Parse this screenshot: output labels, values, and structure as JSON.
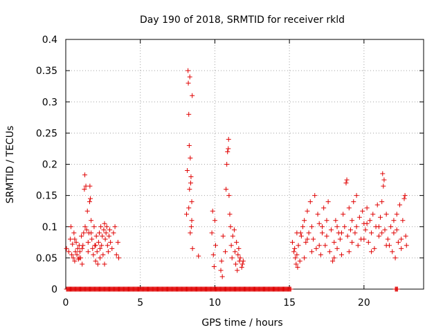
{
  "chart_data": {
    "type": "scatter",
    "title": "Day 190 of 2018, SRMTID for receiver rkld",
    "xlabel": "GPS time / hours",
    "ylabel": "SRMTID / TECUs",
    "xlim": [
      0,
      24
    ],
    "ylim": [
      0,
      0.4
    ],
    "x_ticks": [
      0,
      5,
      10,
      15,
      20
    ],
    "y_ticks": [
      0,
      0.05,
      0.1,
      0.15,
      0.2,
      0.25,
      0.3,
      0.35,
      0.4
    ],
    "x_tick_labels": [
      "0",
      "5",
      "10",
      "15",
      "20"
    ],
    "y_tick_labels": [
      "0",
      "0.05",
      "0.1",
      "0.15",
      "0.2",
      "0.25",
      "0.3",
      "0.35",
      "0.4"
    ],
    "grid": true,
    "marker": "+",
    "colors": {
      "series": "#e00000"
    },
    "series": [
      {
        "name": "SRMTID",
        "points": [
          [
            0.05,
            0.065
          ],
          [
            0.2,
            0.06
          ],
          [
            0.3,
            0.08
          ],
          [
            0.35,
            0.1
          ],
          [
            0.4,
            0.055
          ],
          [
            0.45,
            0.072
          ],
          [
            0.5,
            0.05
          ],
          [
            0.55,
            0.09
          ],
          [
            0.6,
            0.045
          ],
          [
            0.65,
            0.06
          ],
          [
            0.7,
            0.075
          ],
          [
            0.75,
            0.055
          ],
          [
            0.8,
            0.065
          ],
          [
            0.85,
            0.048
          ],
          [
            0.9,
            0.07
          ],
          [
            0.95,
            0.06
          ],
          [
            1.0,
            0.05
          ],
          [
            1.05,
            0.085
          ],
          [
            1.1,
            0.065
          ],
          [
            1.15,
            0.07
          ],
          [
            1.2,
            0.09
          ],
          [
            1.25,
            0.16
          ],
          [
            1.28,
            0.183
          ],
          [
            1.3,
            0.1
          ],
          [
            1.35,
            0.165
          ],
          [
            1.4,
            0.095
          ],
          [
            1.45,
            0.125
          ],
          [
            1.5,
            0.075
          ],
          [
            1.55,
            0.09
          ],
          [
            1.6,
            0.14
          ],
          [
            1.62,
            0.165
          ],
          [
            1.65,
            0.145
          ],
          [
            1.7,
            0.11
          ],
          [
            1.75,
            0.08
          ],
          [
            1.8,
            0.065
          ],
          [
            1.85,
            0.055
          ],
          [
            1.9,
            0.1
          ],
          [
            1.95,
            0.07
          ],
          [
            2.0,
            0.045
          ],
          [
            2.05,
            0.085
          ],
          [
            2.1,
            0.06
          ],
          [
            2.15,
            0.04
          ],
          [
            2.2,
            0.075
          ],
          [
            2.25,
            0.09
          ],
          [
            2.3,
            0.065
          ],
          [
            2.35,
            0.1
          ],
          [
            2.4,
            0.07
          ],
          [
            2.45,
            0.085
          ],
          [
            2.5,
            0.055
          ],
          [
            2.55,
            0.095
          ],
          [
            2.6,
            0.105
          ],
          [
            2.65,
            0.08
          ],
          [
            2.7,
            0.09
          ],
          [
            2.75,
            0.1
          ],
          [
            2.8,
            0.07
          ],
          [
            2.85,
            0.06
          ],
          [
            2.9,
            0.085
          ],
          [
            2.95,
            0.095
          ],
          [
            3.0,
            0.075
          ],
          [
            3.1,
            0.065
          ],
          [
            3.2,
            0.09
          ],
          [
            3.3,
            0.1
          ],
          [
            3.4,
            0.055
          ],
          [
            3.5,
            0.075
          ],
          [
            3.55,
            0.05
          ],
          [
            1.5,
            0.06
          ],
          [
            1.7,
            0.09
          ],
          [
            2.0,
            0.07
          ],
          [
            2.3,
            0.05
          ],
          [
            2.6,
            0.04
          ],
          [
            0.6,
            0.08
          ],
          [
            0.9,
            0.05
          ],
          [
            1.1,
            0.04
          ],
          [
            8.1,
            0.12
          ],
          [
            8.15,
            0.19
          ],
          [
            8.2,
            0.35
          ],
          [
            8.22,
            0.33
          ],
          [
            8.25,
            0.28
          ],
          [
            8.28,
            0.23
          ],
          [
            8.3,
            0.16
          ],
          [
            8.32,
            0.34
          ],
          [
            8.35,
            0.21
          ],
          [
            8.38,
            0.17
          ],
          [
            8.4,
            0.18
          ],
          [
            8.42,
            0.1
          ],
          [
            8.45,
            0.14
          ],
          [
            8.48,
            0.31
          ],
          [
            8.5,
            0.065
          ],
          [
            8.25,
            0.13
          ],
          [
            8.35,
            0.09
          ],
          [
            8.45,
            0.11
          ],
          [
            8.9,
            0.053
          ],
          [
            9.8,
            0.09
          ],
          [
            9.85,
            0.125
          ],
          [
            9.9,
            0.055
          ],
          [
            9.95,
            0.036
          ],
          [
            10.0,
            0.11
          ],
          [
            10.05,
            0.07
          ],
          [
            10.4,
            0.03
          ],
          [
            10.45,
            0.045
          ],
          [
            10.5,
            0.02
          ],
          [
            10.55,
            0.085
          ],
          [
            10.7,
            0.06
          ],
          [
            10.75,
            0.16
          ],
          [
            10.8,
            0.2
          ],
          [
            10.85,
            0.22
          ],
          [
            10.9,
            0.225
          ],
          [
            10.92,
            0.24
          ],
          [
            10.95,
            0.15
          ],
          [
            11.0,
            0.12
          ],
          [
            11.05,
            0.1
          ],
          [
            11.1,
            0.07
          ],
          [
            11.15,
            0.05
          ],
          [
            11.2,
            0.085
          ],
          [
            11.3,
            0.095
          ],
          [
            11.35,
            0.06
          ],
          [
            11.4,
            0.04
          ],
          [
            11.45,
            0.075
          ],
          [
            11.5,
            0.03
          ],
          [
            11.55,
            0.055
          ],
          [
            11.6,
            0.065
          ],
          [
            11.65,
            0.045
          ],
          [
            11.7,
            0.05
          ],
          [
            11.8,
            0.035
          ],
          [
            11.85,
            0.04
          ],
          [
            11.9,
            0.045
          ],
          [
            15.2,
            0.075
          ],
          [
            15.3,
            0.06
          ],
          [
            15.35,
            0.065
          ],
          [
            15.4,
            0.05
          ],
          [
            15.45,
            0.04
          ],
          [
            15.5,
            0.055
          ],
          [
            15.55,
            0.035
          ],
          [
            15.6,
            0.07
          ],
          [
            15.7,
            0.045
          ],
          [
            15.75,
            0.09
          ],
          [
            15.8,
            0.085
          ],
          [
            15.9,
            0.1
          ],
          [
            16.0,
            0.11
          ],
          [
            16.1,
            0.075
          ],
          [
            16.2,
            0.125
          ],
          [
            16.3,
            0.09
          ],
          [
            16.4,
            0.14
          ],
          [
            16.5,
            0.06
          ],
          [
            16.6,
            0.08
          ],
          [
            16.7,
            0.15
          ],
          [
            16.8,
            0.065
          ],
          [
            16.9,
            0.12
          ],
          [
            17.0,
            0.105
          ],
          [
            17.1,
            0.055
          ],
          [
            17.2,
            0.1
          ],
          [
            17.3,
            0.13
          ],
          [
            17.4,
            0.07
          ],
          [
            17.5,
            0.085
          ],
          [
            17.6,
            0.14
          ],
          [
            17.7,
            0.06
          ],
          [
            17.8,
            0.095
          ],
          [
            17.9,
            0.045
          ],
          [
            18.0,
            0.075
          ],
          [
            18.1,
            0.11
          ],
          [
            18.2,
            0.065
          ],
          [
            18.3,
            0.09
          ],
          [
            18.4,
            0.08
          ],
          [
            18.5,
            0.055
          ],
          [
            18.6,
            0.12
          ],
          [
            18.7,
            0.1
          ],
          [
            18.8,
            0.17
          ],
          [
            18.85,
            0.175
          ],
          [
            18.9,
            0.085
          ],
          [
            19.0,
            0.13
          ],
          [
            19.1,
            0.095
          ],
          [
            19.2,
            0.075
          ],
          [
            19.3,
            0.14
          ],
          [
            19.4,
            0.09
          ],
          [
            19.5,
            0.15
          ],
          [
            19.6,
            0.07
          ],
          [
            19.7,
            0.115
          ],
          [
            19.8,
            0.08
          ],
          [
            19.9,
            0.125
          ],
          [
            20.0,
            0.105
          ],
          [
            20.1,
            0.095
          ],
          [
            20.2,
            0.13
          ],
          [
            20.3,
            0.075
          ],
          [
            20.4,
            0.11
          ],
          [
            20.5,
            0.09
          ],
          [
            20.6,
            0.12
          ],
          [
            20.7,
            0.065
          ],
          [
            20.8,
            0.1
          ],
          [
            20.9,
            0.135
          ],
          [
            21.0,
            0.085
          ],
          [
            21.1,
            0.115
          ],
          [
            21.2,
            0.14
          ],
          [
            21.25,
            0.185
          ],
          [
            21.3,
            0.165
          ],
          [
            21.35,
            0.175
          ],
          [
            21.4,
            0.095
          ],
          [
            21.5,
            0.12
          ],
          [
            21.6,
            0.08
          ],
          [
            21.7,
            0.07
          ],
          [
            21.8,
            0.1
          ],
          [
            21.9,
            0.06
          ],
          [
            22.0,
            0.09
          ],
          [
            22.1,
            0.05
          ],
          [
            22.2,
            0.12
          ],
          [
            22.3,
            0.075
          ],
          [
            22.4,
            0.135
          ],
          [
            22.5,
            0.065
          ],
          [
            22.6,
            0.11
          ],
          [
            22.7,
            0.145
          ],
          [
            22.75,
            0.15
          ],
          [
            22.8,
            0.085
          ],
          [
            22.85,
            0.07
          ],
          [
            15.5,
            0.09
          ],
          [
            16.0,
            0.05
          ],
          [
            16.5,
            0.1
          ],
          [
            17.0,
            0.07
          ],
          [
            17.5,
            0.11
          ],
          [
            18.0,
            0.05
          ],
          [
            18.5,
            0.09
          ],
          [
            19.0,
            0.06
          ],
          [
            19.5,
            0.1
          ],
          [
            20.0,
            0.08
          ],
          [
            20.5,
            0.06
          ],
          [
            21.0,
            0.1
          ],
          [
            21.5,
            0.07
          ],
          [
            22.0,
            0.11
          ],
          [
            22.5,
            0.08
          ],
          [
            16.2,
            0.08
          ],
          [
            17.2,
            0.09
          ],
          [
            18.2,
            0.1
          ],
          [
            19.2,
            0.11
          ],
          [
            20.2,
            0.105
          ],
          [
            21.2,
            0.09
          ],
          [
            22.2,
            0.095
          ]
        ],
        "zero_intervals": [
          [
            0.05,
            15.1
          ],
          [
            22.1,
            22.25
          ]
        ]
      }
    ]
  }
}
